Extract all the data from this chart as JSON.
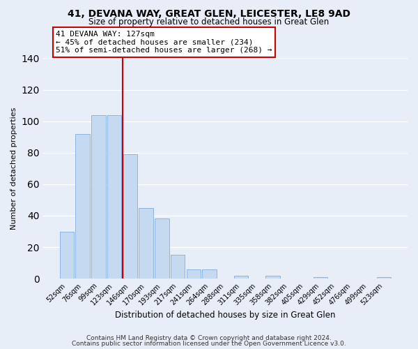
{
  "title": "41, DEVANA WAY, GREAT GLEN, LEICESTER, LE8 9AD",
  "subtitle": "Size of property relative to detached houses in Great Glen",
  "xlabel": "Distribution of detached houses by size in Great Glen",
  "ylabel": "Number of detached properties",
  "bar_labels": [
    "52sqm",
    "76sqm",
    "99sqm",
    "123sqm",
    "146sqm",
    "170sqm",
    "193sqm",
    "217sqm",
    "241sqm",
    "264sqm",
    "288sqm",
    "311sqm",
    "335sqm",
    "358sqm",
    "382sqm",
    "405sqm",
    "429sqm",
    "452sqm",
    "476sqm",
    "499sqm",
    "523sqm"
  ],
  "bar_values": [
    30,
    92,
    104,
    104,
    79,
    45,
    38,
    15,
    6,
    6,
    0,
    2,
    0,
    2,
    0,
    0,
    1,
    0,
    0,
    0,
    1
  ],
  "bar_color": "#c5d9f1",
  "bar_edgecolor": "#8db4e2",
  "vline_x": 3.54,
  "vline_color": "#cc0000",
  "annotation_title": "41 DEVANA WAY: 127sqm",
  "annotation_line1": "← 45% of detached houses are smaller (234)",
  "annotation_line2": "51% of semi-detached houses are larger (268) →",
  "annotation_box_color": "#ffffff",
  "annotation_box_edgecolor": "#cc0000",
  "ylim": [
    0,
    140
  ],
  "yticks": [
    0,
    20,
    40,
    60,
    80,
    100,
    120,
    140
  ],
  "footer1": "Contains HM Land Registry data © Crown copyright and database right 2024.",
  "footer2": "Contains public sector information licensed under the Open Government Licence v3.0.",
  "background_color": "#e8eef8",
  "plot_background": "#e8eef8"
}
